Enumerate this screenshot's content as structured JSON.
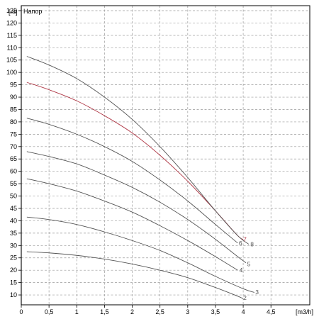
{
  "chart_data": {
    "type": "line",
    "title": "Напор",
    "ylabel": "[m]",
    "xlabel": "[m3/h]",
    "xlim": [
      0,
      5.2
    ],
    "ylim": [
      6,
      127
    ],
    "x_ticks": [
      0,
      0.5,
      1,
      1.5,
      2,
      2.5,
      3,
      3.5,
      4,
      4.5
    ],
    "x_tick_labels": [
      "0",
      "0,5",
      "1",
      "1,5",
      "2",
      "2,5",
      "3",
      "3,5",
      "4",
      "4,5"
    ],
    "y_ticks": [
      10,
      15,
      20,
      25,
      30,
      35,
      40,
      45,
      50,
      55,
      60,
      65,
      70,
      75,
      80,
      85,
      90,
      95,
      100,
      105,
      110,
      115,
      120,
      125
    ],
    "grid": true,
    "series": [
      {
        "name": "2",
        "color": "#555555",
        "label_pos": [
          4.0,
          8.8
        ],
        "points": [
          [
            0.1,
            27.5
          ],
          [
            0.5,
            27.0
          ],
          [
            1.0,
            26.0
          ],
          [
            1.5,
            24.5
          ],
          [
            2.0,
            22.5
          ],
          [
            2.5,
            20.0
          ],
          [
            3.0,
            17.0
          ],
          [
            3.5,
            13.0
          ],
          [
            3.9,
            9.5
          ],
          [
            4.0,
            8.5
          ]
        ]
      },
      {
        "name": "3",
        "color": "#555555",
        "label_pos": [
          4.22,
          11.2
        ],
        "points": [
          [
            0.1,
            41.5
          ],
          [
            0.5,
            40.5
          ],
          [
            1.0,
            38.5
          ],
          [
            1.5,
            35.5
          ],
          [
            2.0,
            32.0
          ],
          [
            2.5,
            28.0
          ],
          [
            3.0,
            23.0
          ],
          [
            3.5,
            17.5
          ],
          [
            4.0,
            12.5
          ],
          [
            4.2,
            11.0
          ]
        ]
      },
      {
        "name": "4",
        "color": "#555555",
        "label_pos": [
          3.93,
          20.0
        ],
        "points": [
          [
            0.1,
            57.0
          ],
          [
            0.5,
            55.0
          ],
          [
            1.0,
            52.0
          ],
          [
            1.5,
            48.0
          ],
          [
            2.0,
            43.5
          ],
          [
            2.5,
            38.0
          ],
          [
            3.0,
            32.0
          ],
          [
            3.5,
            25.5
          ],
          [
            3.9,
            20.0
          ]
        ]
      },
      {
        "name": "5",
        "color": "#555555",
        "label_pos": [
          4.07,
          22.5
        ],
        "points": [
          [
            0.1,
            68.0
          ],
          [
            0.5,
            66.0
          ],
          [
            1.0,
            63.0
          ],
          [
            1.5,
            58.5
          ],
          [
            2.0,
            53.5
          ],
          [
            2.5,
            47.5
          ],
          [
            3.0,
            40.5
          ],
          [
            3.5,
            32.5
          ],
          [
            3.9,
            25.5
          ],
          [
            4.05,
            23.0
          ]
        ]
      },
      {
        "name": "6",
        "color": "#555555",
        "label_pos": [
          3.92,
          31.0
        ],
        "points": [
          [
            0.1,
            81.5
          ],
          [
            0.5,
            79.0
          ],
          [
            1.0,
            75.0
          ],
          [
            1.5,
            70.0
          ],
          [
            2.0,
            64.0
          ],
          [
            2.5,
            56.5
          ],
          [
            3.0,
            48.0
          ],
          [
            3.5,
            38.5
          ],
          [
            3.9,
            31.0
          ]
        ]
      },
      {
        "name": "7",
        "color": "#b03a48",
        "label_pos": [
          4.0,
          32.5
        ],
        "points": [
          [
            0.1,
            96.0
          ],
          [
            0.5,
            93.0
          ],
          [
            1.0,
            88.5
          ],
          [
            1.5,
            82.5
          ],
          [
            2.0,
            75.5
          ],
          [
            2.5,
            66.5
          ],
          [
            3.0,
            56.0
          ],
          [
            3.5,
            44.0
          ],
          [
            3.9,
            34.0
          ],
          [
            4.0,
            32.5
          ]
        ]
      },
      {
        "name": "8",
        "color": "#555555",
        "label_pos": [
          4.13,
          30.5
        ],
        "points": [
          [
            0.1,
            106.5
          ],
          [
            0.5,
            103.0
          ],
          [
            1.0,
            97.5
          ],
          [
            1.5,
            90.0
          ],
          [
            2.0,
            81.0
          ],
          [
            2.5,
            70.0
          ],
          [
            3.0,
            57.5
          ],
          [
            3.5,
            44.0
          ],
          [
            3.9,
            34.0
          ],
          [
            4.1,
            30.5
          ]
        ]
      }
    ]
  }
}
